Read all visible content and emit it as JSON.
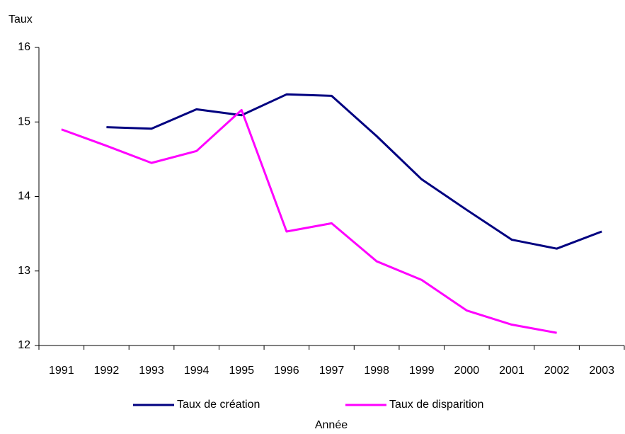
{
  "chart_data": {
    "type": "line",
    "y_axis_label": "Taux",
    "x_axis_label": "Année",
    "categories": [
      "1991",
      "1992",
      "1993",
      "1994",
      "1995",
      "1996",
      "1997",
      "1998",
      "1999",
      "2000",
      "2001",
      "2002",
      "2003"
    ],
    "series": [
      {
        "name": "Taux de création",
        "color": "#000080",
        "values": [
          null,
          14.93,
          14.91,
          15.17,
          15.09,
          15.37,
          15.35,
          14.81,
          14.23,
          13.82,
          13.42,
          13.3,
          13.53
        ]
      },
      {
        "name": "Taux de disparition",
        "color": "#ff00ff",
        "values": [
          14.9,
          14.68,
          14.45,
          14.61,
          15.16,
          13.53,
          13.64,
          13.13,
          12.88,
          12.47,
          12.28,
          12.17,
          null
        ]
      }
    ],
    "ylim": [
      12,
      16
    ],
    "yticks": [
      12,
      13,
      14,
      15,
      16
    ],
    "grid": false,
    "legend": "bottom"
  }
}
